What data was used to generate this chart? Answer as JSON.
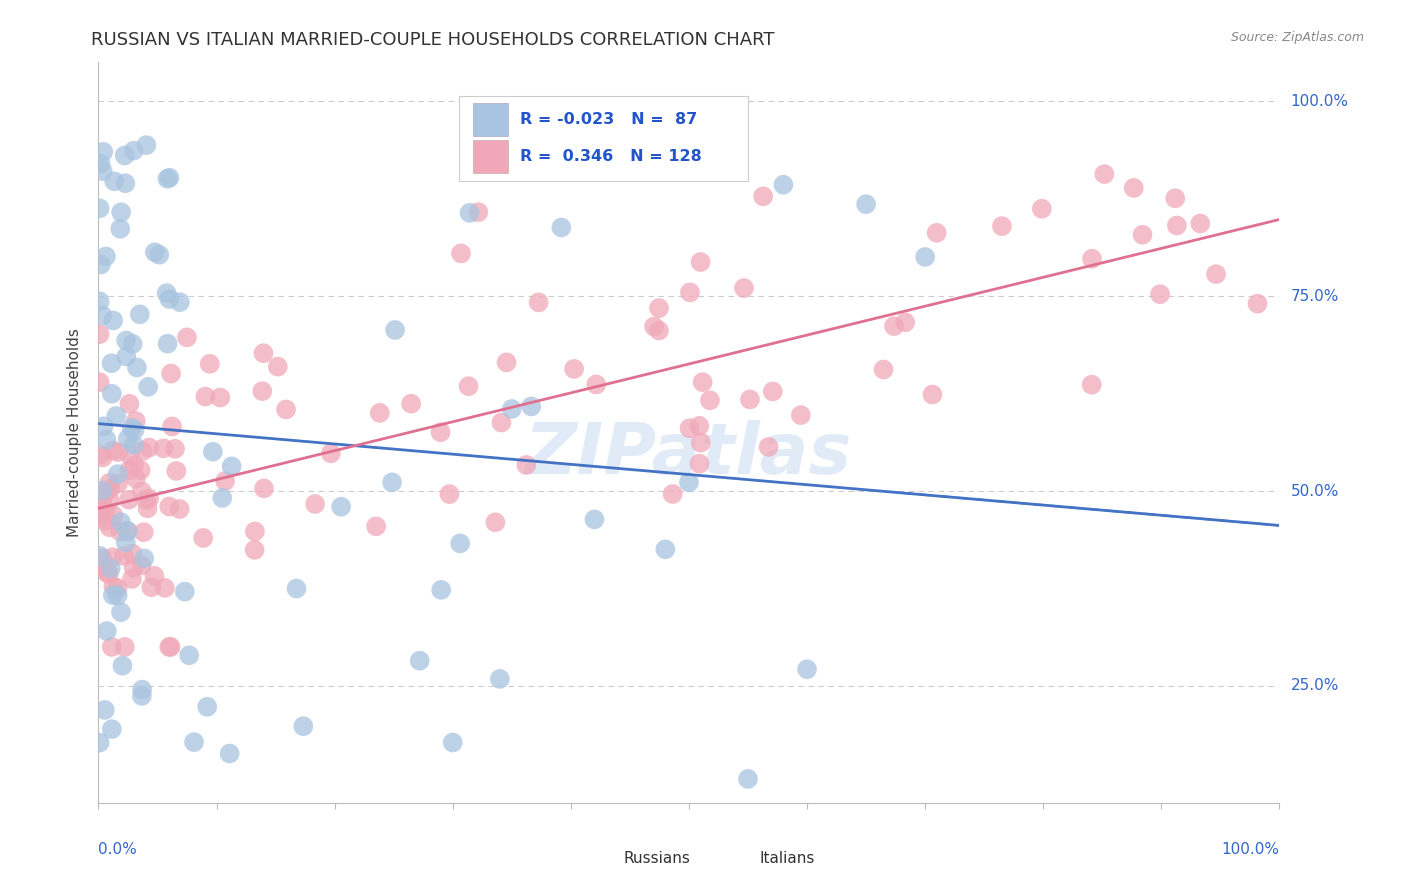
{
  "title": "RUSSIAN VS ITALIAN MARRIED-COUPLE HOUSEHOLDS CORRELATION CHART",
  "source": "Source: ZipAtlas.com",
  "ylabel": "Married-couple Households",
  "blue_color": "#a8c4e0",
  "pink_color": "#f0a8b8",
  "trend_blue": "#4472c4",
  "trend_pink": "#e07090",
  "background": "#ffffff",
  "grid_color": "#cccccc",
  "watermark": "ZIPatlas",
  "watermark_color": "#c5d8f0",
  "ytick_positions": [
    0.25,
    0.5,
    0.75,
    1.0
  ],
  "ytick_labels": [
    "25.0%",
    "50.0%",
    "75.0%",
    "100.0%"
  ],
  "legend_blue_r": "R = -0.023",
  "legend_blue_n": "N =  87",
  "legend_pink_r": "R =  0.346",
  "legend_pink_n": "N = 128"
}
